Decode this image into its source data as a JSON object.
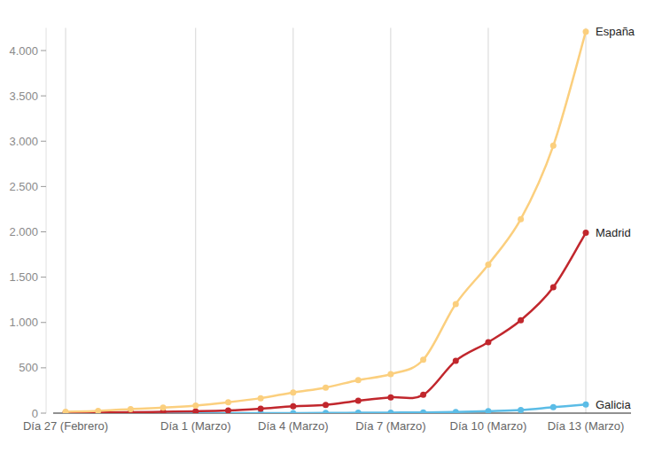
{
  "chart_data": {
    "type": "line",
    "categories": [
      "Día 27 (Febrero)",
      null,
      null,
      null,
      "Día 1 (Marzo)",
      null,
      null,
      "Día 4 (Marzo)",
      null,
      null,
      "Día 7 (Marzo)",
      null,
      null,
      "Día 10 (Marzo)",
      null,
      null,
      "Día 13 (Marzo)"
    ],
    "series": [
      {
        "name": "España",
        "color": "#fbcf7e",
        "marker": "circle",
        "values": [
          15,
          25,
          45,
          60,
          84,
          120,
          165,
          228,
          282,
          365,
          430,
          589,
          1204,
          1639,
          2140,
          2950,
          4209
        ]
      },
      {
        "name": "Madrid",
        "color": "#c1272d",
        "marker": "circle",
        "values": [
          5,
          7,
          10,
          15,
          20,
          29,
          49,
          76,
          90,
          137,
          174,
          202,
          577,
          782,
          1024,
          1388,
          1990
        ]
      },
      {
        "name": "Galicia",
        "color": "#5bbce6",
        "marker": "circle",
        "values": [
          0,
          0,
          0,
          0,
          0,
          0,
          0,
          1,
          2,
          4,
          6,
          8,
          12,
          22,
          35,
          65,
          95
        ]
      }
    ],
    "ylim": [
      0,
      4250
    ],
    "yticks": [
      {
        "value": 0,
        "label": "0"
      },
      {
        "value": 500,
        "label": "500"
      },
      {
        "value": 1000,
        "label": "1.000"
      },
      {
        "value": 1500,
        "label": "1.500"
      },
      {
        "value": 2000,
        "label": "2.000"
      },
      {
        "value": 2500,
        "label": "2.500"
      },
      {
        "value": 3000,
        "label": "3.000"
      },
      {
        "value": 3500,
        "label": "3.500"
      },
      {
        "value": 4000,
        "label": "4.000"
      }
    ],
    "grid": true
  }
}
